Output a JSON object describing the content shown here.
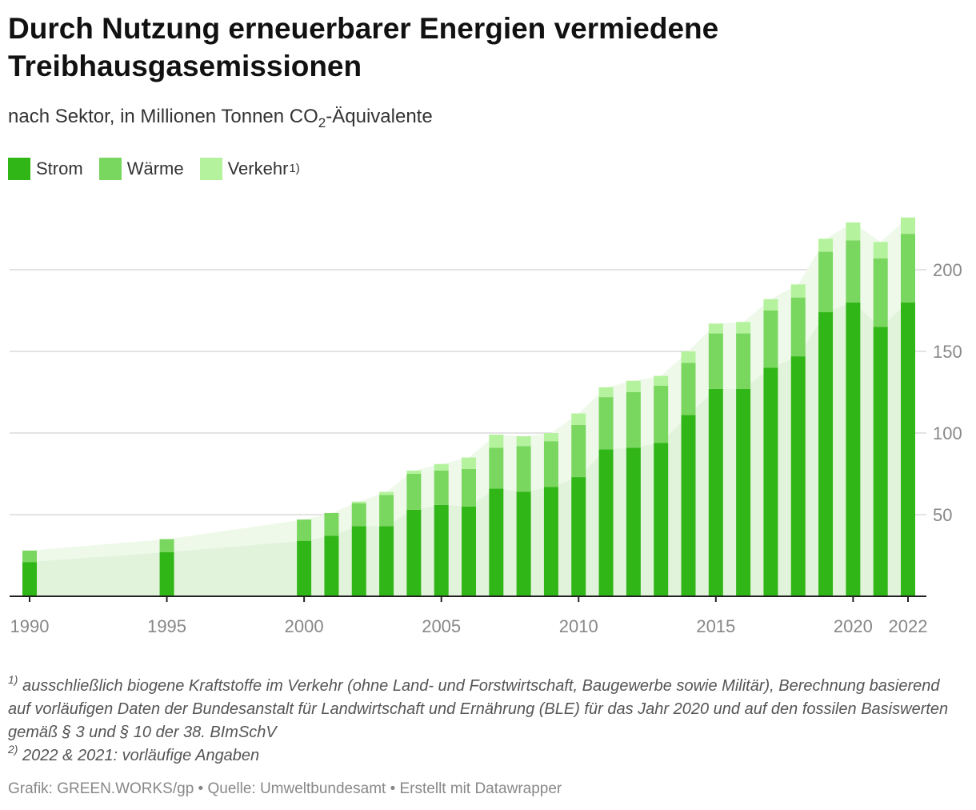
{
  "header": {
    "title": "Durch Nutzung erneuerbarer Energien vermiedene Treibhausgasemissionen",
    "subtitle_before": "nach Sektor, in Millionen Tonnen CO",
    "subtitle_sub": "2",
    "subtitle_after": "-Äquivalente"
  },
  "legend": {
    "items": [
      {
        "label": "Strom",
        "sup": "",
        "color": "#31b617"
      },
      {
        "label": "Wärme",
        "sup": "",
        "color": "#79d65f"
      },
      {
        "label": "Verkehr",
        "sup": "1)",
        "color": "#b4f29d"
      }
    ]
  },
  "chart_data": {
    "type": "bar",
    "stacked": true,
    "x": [
      1990,
      1995,
      2000,
      2001,
      2002,
      2003,
      2004,
      2005,
      2006,
      2007,
      2008,
      2009,
      2010,
      2011,
      2012,
      2013,
      2014,
      2015,
      2016,
      2017,
      2018,
      2019,
      2020,
      2021,
      2022
    ],
    "series": [
      {
        "name": "Strom",
        "color": "#31b617",
        "values": [
          21,
          27,
          34,
          37,
          43,
          43,
          53,
          56,
          55,
          66,
          64,
          67,
          73,
          90,
          91,
          94,
          111,
          127,
          127,
          140,
          147,
          174,
          180,
          165,
          180
        ]
      },
      {
        "name": "Wärme",
        "color": "#79d65f",
        "values": [
          7,
          8,
          13,
          14,
          14,
          19,
          22,
          21,
          23,
          25,
          28,
          28,
          32,
          32,
          34,
          35,
          32,
          34,
          34,
          35,
          36,
          37,
          38,
          42,
          42
        ]
      },
      {
        "name": "Verkehr",
        "color": "#b4f29d",
        "values": [
          0,
          0,
          0,
          0,
          1,
          2,
          2,
          4,
          7,
          8,
          6,
          5,
          7,
          6,
          7,
          6,
          7,
          6,
          7,
          7,
          8,
          8,
          11,
          10,
          10
        ]
      }
    ],
    "area_fill_colors": [
      "#e2f3dc",
      "#eef9ea"
    ],
    "x_ticks": [
      "1990",
      "1995",
      "2000",
      "2005",
      "2010",
      "2015",
      "2020",
      "2022"
    ],
    "y_ticks": [
      "50",
      "100",
      "150",
      "200"
    ],
    "ylim": [
      0,
      240
    ],
    "y_axis_position": "right",
    "grid": true
  },
  "footnotes": {
    "note1_marker": "1)",
    "note1_text": "ausschließlich biogene Kraftstoffe im Verkehr (ohne Land- und Forstwirtschaft, Baugewerbe sowie Militär), Berechnung basierend auf vorläufigen Daten der Bundesanstalt für Landwirtschaft und Ernährung (BLE) für das Jahr 2020 und auf den fossilen Basiswerten gemäß § 3 und § 10 der 38. BImSchV",
    "note2_marker": "2)",
    "note2_text": "2022 & 2021: vorläufige Angaben"
  },
  "source": "Grafik: GREEN.WORKS/gp • Quelle: Umweltbundesamt • Erstellt mit Datawrapper"
}
